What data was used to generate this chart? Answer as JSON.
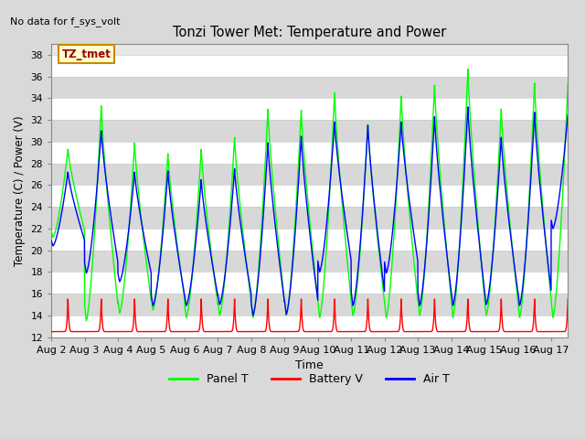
{
  "title": "Tonzi Tower Met: Temperature and Power",
  "ylabel": "Temperature (C) / Power (V)",
  "xlabel": "Time",
  "no_data_text": "No data for f_sys_volt",
  "legend_box_label": "TZ_tmet",
  "ylim": [
    12,
    39
  ],
  "yticks": [
    12,
    14,
    16,
    18,
    20,
    22,
    24,
    26,
    28,
    30,
    32,
    34,
    36,
    38
  ],
  "xlim_days": [
    0,
    15.5
  ],
  "xtick_labels": [
    "Aug 2",
    "Aug 3",
    "Aug 4",
    "Aug 5",
    "Aug 6",
    "Aug 7",
    "Aug 8",
    "Aug 9",
    "Aug 10",
    "Aug 11",
    "Aug 12",
    "Aug 13",
    "Aug 14",
    "Aug 15",
    "Aug 16",
    "Aug 17"
  ],
  "xtick_positions": [
    0,
    1,
    2,
    3,
    4,
    5,
    6,
    7,
    8,
    9,
    10,
    11,
    12,
    13,
    14,
    15
  ],
  "panel_t_color": "#00ff00",
  "battery_v_color": "#ff0000",
  "air_t_color": "#0000ff",
  "plot_bg_color": "#e8e8e8",
  "legend_entries": [
    "Panel T",
    "Battery V",
    "Air T"
  ],
  "legend_colors": [
    "#00ff00",
    "#ff0000",
    "#0000ff"
  ],
  "panel_day_peak": [
    29.3,
    33.3,
    29.9,
    28.9,
    29.3,
    30.4,
    33.0,
    32.9,
    34.5,
    31.6,
    34.2,
    35.2,
    36.7,
    33.0,
    35.4,
    35.3
  ],
  "panel_night_min": [
    21.2,
    13.5,
    14.2,
    14.5,
    13.8,
    14.0,
    13.8,
    14.0,
    13.8,
    14.0,
    13.8,
    14.0,
    13.8,
    14.0,
    13.8,
    13.8
  ],
  "air_day_peak": [
    27.2,
    31.0,
    27.2,
    27.3,
    26.5,
    27.5,
    29.9,
    30.5,
    31.8,
    31.5,
    31.8,
    32.3,
    33.2,
    30.4,
    32.7,
    32.5
  ],
  "air_night_min": [
    20.4,
    17.9,
    17.1,
    14.9,
    14.9,
    15.0,
    14.0,
    14.1,
    18.0,
    14.9,
    17.9,
    14.9,
    14.9,
    15.0,
    14.9,
    22.0
  ],
  "batt_day_peak": 15.5,
  "batt_night_min": 12.5,
  "n_days": 15.5,
  "n_points": 4000
}
